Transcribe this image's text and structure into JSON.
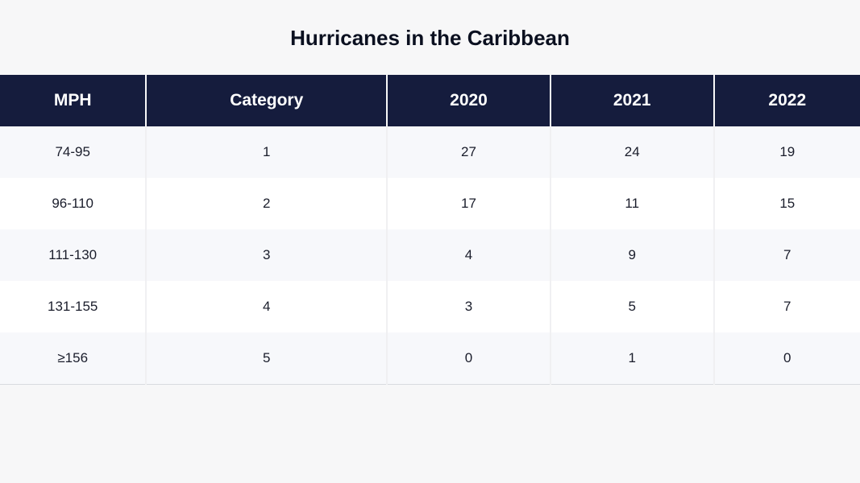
{
  "title": "Hurricanes in the Caribbean",
  "table": {
    "type": "table",
    "header_bg": "#151c3d",
    "header_fg": "#ffffff",
    "row_odd_bg": "#f7f8fb",
    "row_even_bg": "#ffffff",
    "text_color": "#1a1d2b",
    "border_color": "#f0f0f2",
    "header_fontsize": 21,
    "cell_fontsize": 17,
    "column_widths_pct": [
      17,
      28,
      19,
      19,
      17
    ],
    "columns": [
      "MPH",
      "Category",
      "2020",
      "2021",
      "2022"
    ],
    "rows": [
      [
        "74-95",
        "1",
        "27",
        "24",
        "19"
      ],
      [
        "96-110",
        "2",
        "17",
        "11",
        "15"
      ],
      [
        "111-130",
        "3",
        "4",
        "9",
        "7"
      ],
      [
        "131-155",
        "4",
        "3",
        "5",
        "7"
      ],
      [
        "≥156",
        "5",
        "0",
        "1",
        "0"
      ]
    ]
  }
}
